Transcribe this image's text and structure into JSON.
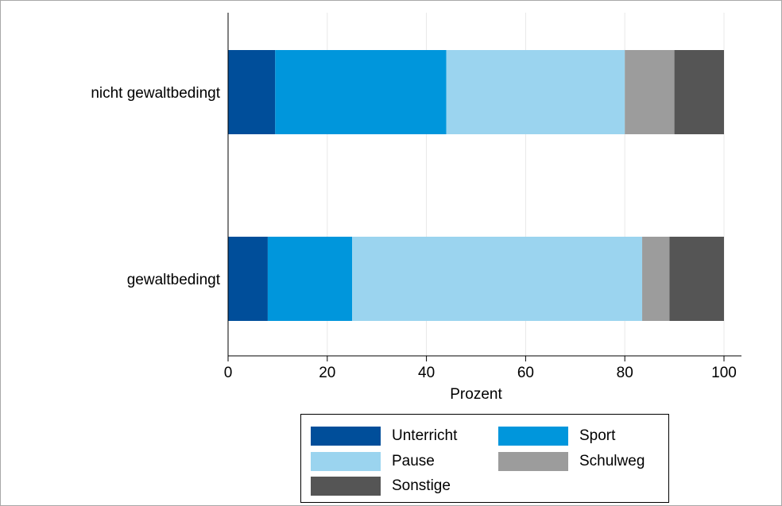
{
  "chart_data": {
    "type": "bar",
    "orientation": "horizontal",
    "stacked": true,
    "categories": [
      "nicht gewaltbedingt",
      "gewaltbedingt"
    ],
    "series": [
      {
        "name": "Unterricht",
        "color": "#004e9a",
        "values": [
          9.5,
          8.0
        ]
      },
      {
        "name": "Sport",
        "color": "#0096dc",
        "values": [
          34.5,
          17.0
        ]
      },
      {
        "name": "Pause",
        "color": "#9bd4ef",
        "values": [
          36.0,
          58.5
        ]
      },
      {
        "name": "Schulweg",
        "color": "#9c9c9c",
        "values": [
          10.0,
          5.5
        ]
      },
      {
        "name": "Sonstige",
        "color": "#555555",
        "values": [
          10.0,
          11.0
        ]
      }
    ],
    "xlabel": "Prozent",
    "xlim": [
      0,
      100
    ],
    "xticks": [
      "0",
      "20",
      "40",
      "60",
      "80",
      "100"
    ],
    "grid": "vertical",
    "legend": "bottom"
  }
}
